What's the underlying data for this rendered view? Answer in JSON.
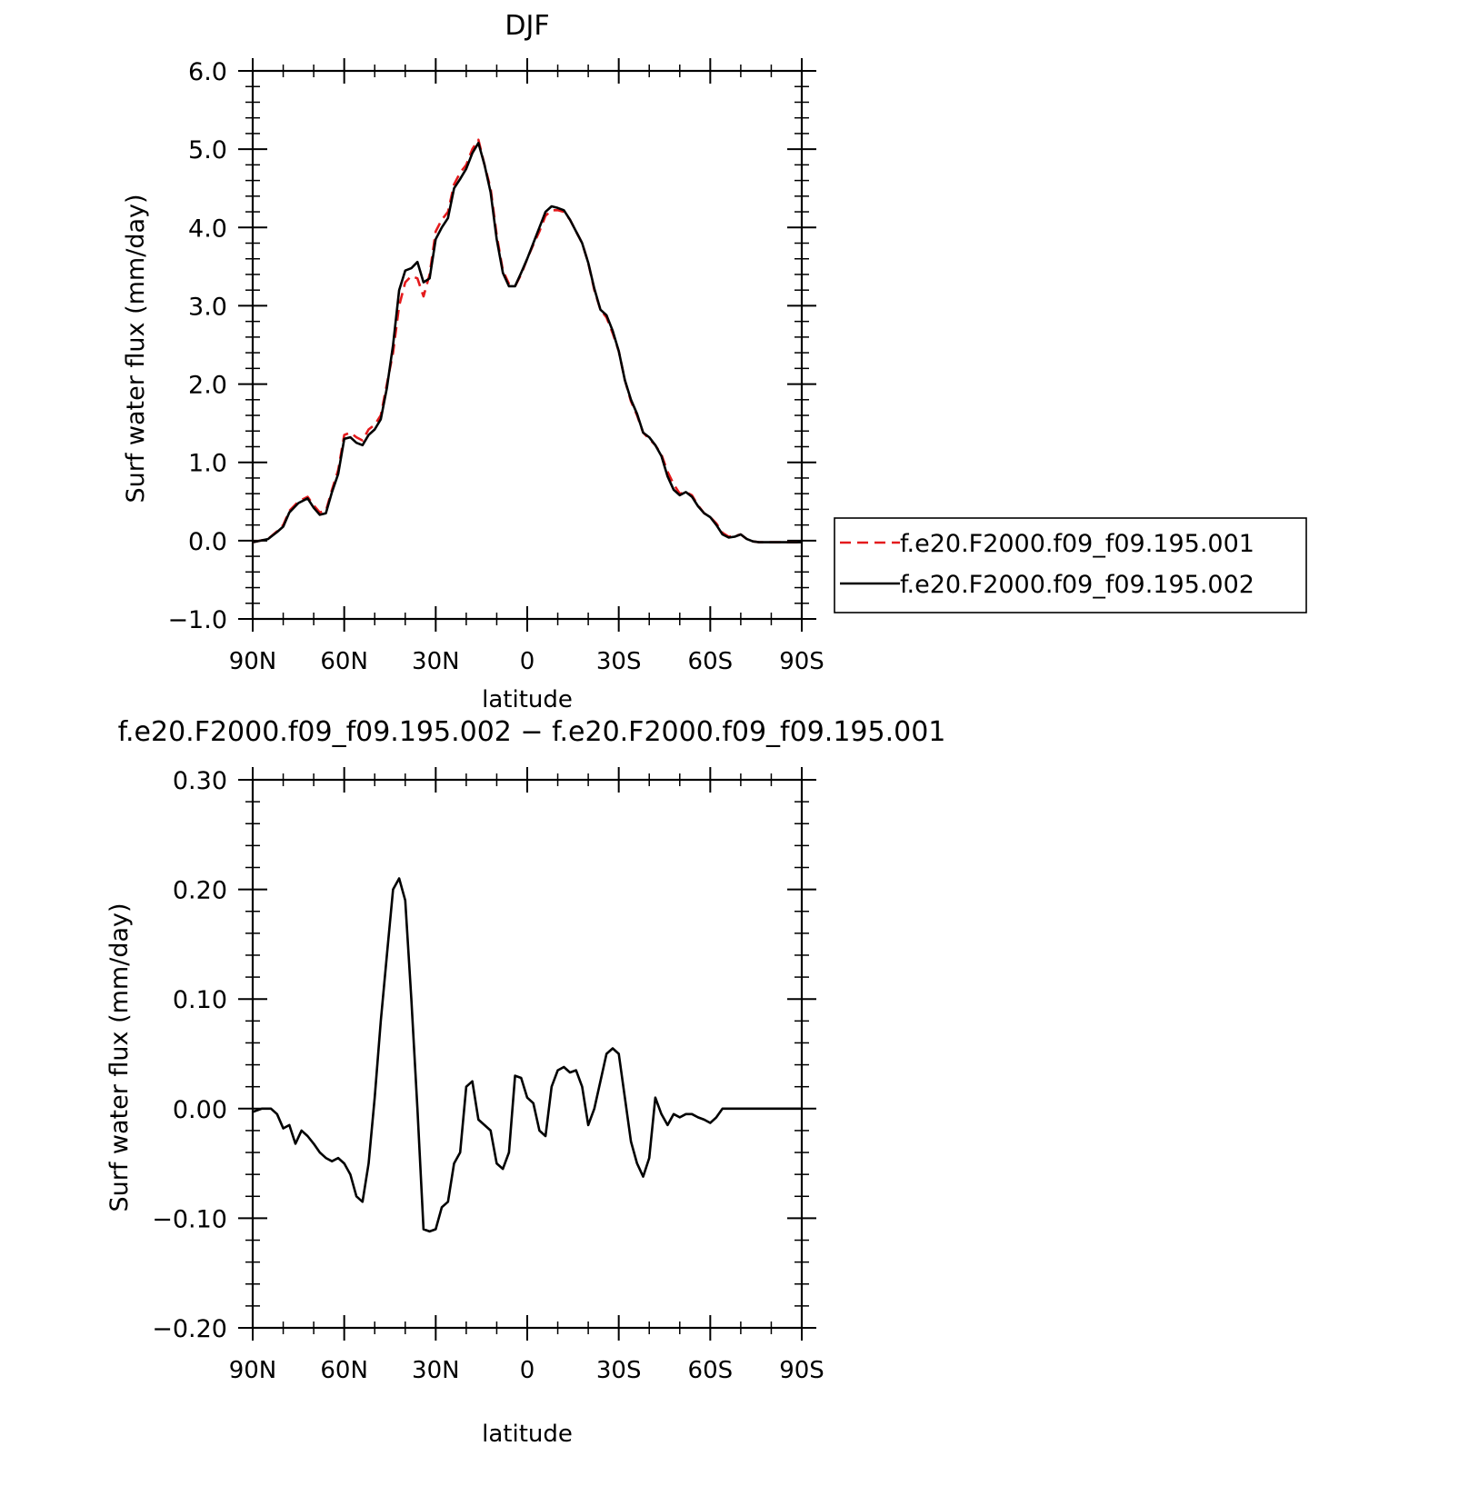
{
  "chart_data": [
    {
      "type": "line",
      "title": "DJF",
      "xlabel": "latitude",
      "ylabel": "Surf water flux (mm/day)",
      "x_unit": "degrees latitude (positive = north, negative = south)",
      "xlim": [
        90,
        -90
      ],
      "ylim": [
        -1.0,
        6.0
      ],
      "xticks": [
        {
          "value": 90,
          "label": "90N"
        },
        {
          "value": 60,
          "label": "60N"
        },
        {
          "value": 30,
          "label": "30N"
        },
        {
          "value": 0,
          "label": "0"
        },
        {
          "value": -30,
          "label": "30S"
        },
        {
          "value": -60,
          "label": "60S"
        },
        {
          "value": -90,
          "label": "90S"
        }
      ],
      "yticks": [
        {
          "value": -1.0,
          "label": "−1.0"
        },
        {
          "value": 0.0,
          "label": "0.0"
        },
        {
          "value": 1.0,
          "label": "1.0"
        },
        {
          "value": 2.0,
          "label": "2.0"
        },
        {
          "value": 3.0,
          "label": "3.0"
        },
        {
          "value": 4.0,
          "label": "4.0"
        },
        {
          "value": 5.0,
          "label": "5.0"
        },
        {
          "value": 6.0,
          "label": "6.0"
        }
      ],
      "legend_position": "right",
      "series": [
        {
          "name": "f.e20.F2000.f09_f09.195.001",
          "color": "#e41a1c",
          "dash": "dashed",
          "x": [
            90,
            85,
            82,
            80,
            78,
            75,
            72,
            70,
            68,
            66,
            64,
            62,
            60,
            58,
            56,
            54,
            52,
            50,
            48,
            46,
            44,
            42,
            40,
            38,
            36,
            34,
            32,
            30,
            28,
            26,
            24,
            22,
            20,
            18,
            16,
            14,
            12,
            10,
            8,
            6,
            4,
            2,
            0,
            -2,
            -4,
            -6,
            -8,
            -10,
            -12,
            -14,
            -16,
            -18,
            -20,
            -22,
            -24,
            -26,
            -28,
            -30,
            -32,
            -34,
            -36,
            -38,
            -40,
            -42,
            -44,
            -46,
            -48,
            -50,
            -52,
            -54,
            -56,
            -58,
            -60,
            -62,
            -64,
            -66,
            -68,
            -70,
            -72,
            -74,
            -76,
            -78,
            -80,
            -82,
            -84,
            -86,
            -88,
            -90
          ],
          "y": [
            -0.02,
            0.02,
            0.12,
            0.2,
            0.38,
            0.5,
            0.56,
            0.45,
            0.36,
            0.38,
            0.65,
            0.9,
            1.35,
            1.38,
            1.32,
            1.28,
            1.42,
            1.48,
            1.6,
            2.0,
            2.4,
            3.0,
            3.3,
            3.38,
            3.35,
            3.12,
            3.4,
            3.95,
            4.1,
            4.2,
            4.55,
            4.7,
            4.8,
            5.0,
            5.12,
            4.8,
            4.5,
            3.9,
            3.45,
            3.28,
            3.25,
            3.4,
            3.6,
            3.78,
            3.95,
            4.15,
            4.22,
            4.22,
            4.2,
            4.1,
            3.95,
            3.8,
            3.55,
            3.2,
            2.95,
            2.85,
            2.65,
            2.42,
            2.05,
            1.78,
            1.6,
            1.38,
            1.3,
            1.22,
            1.1,
            0.88,
            0.72,
            0.6,
            0.62,
            0.58,
            0.45,
            0.35,
            0.3,
            0.22,
            0.1,
            0.05,
            0.06,
            0.08,
            0.02,
            -0.01,
            -0.02,
            -0.02,
            -0.02,
            -0.02,
            -0.02,
            -0.02,
            -0.02,
            -0.02
          ]
        },
        {
          "name": "f.e20.F2000.f09_f09.195.002",
          "color": "#000000",
          "dash": "solid",
          "x": [
            90,
            85,
            82,
            80,
            78,
            75,
            72,
            70,
            68,
            66,
            64,
            62,
            60,
            58,
            56,
            54,
            52,
            50,
            48,
            46,
            44,
            42,
            40,
            38,
            36,
            34,
            32,
            30,
            28,
            26,
            24,
            22,
            20,
            18,
            16,
            14,
            12,
            10,
            8,
            6,
            4,
            2,
            0,
            -2,
            -4,
            -6,
            -8,
            -10,
            -12,
            -14,
            -16,
            -18,
            -20,
            -22,
            -24,
            -26,
            -28,
            -30,
            -32,
            -34,
            -36,
            -38,
            -40,
            -42,
            -44,
            -46,
            -48,
            -50,
            -52,
            -54,
            -56,
            -58,
            -60,
            -62,
            -64,
            -66,
            -68,
            -70,
            -72,
            -74,
            -76,
            -78,
            -80,
            -82,
            -84,
            -86,
            -88,
            -90
          ],
          "y": [
            -0.02,
            0.02,
            0.11,
            0.18,
            0.36,
            0.48,
            0.54,
            0.42,
            0.33,
            0.35,
            0.62,
            0.85,
            1.3,
            1.32,
            1.25,
            1.22,
            1.35,
            1.42,
            1.55,
            1.95,
            2.5,
            3.2,
            3.45,
            3.48,
            3.56,
            3.3,
            3.35,
            3.85,
            4.0,
            4.12,
            4.5,
            4.62,
            4.75,
            4.95,
            5.08,
            4.8,
            4.45,
            3.85,
            3.42,
            3.25,
            3.25,
            3.42,
            3.6,
            3.8,
            4.0,
            4.2,
            4.27,
            4.25,
            4.22,
            4.1,
            3.95,
            3.8,
            3.55,
            3.22,
            2.95,
            2.88,
            2.68,
            2.42,
            2.05,
            1.8,
            1.62,
            1.38,
            1.32,
            1.22,
            1.08,
            0.82,
            0.65,
            0.58,
            0.62,
            0.56,
            0.44,
            0.35,
            0.3,
            0.2,
            0.08,
            0.04,
            0.05,
            0.08,
            0.02,
            -0.01,
            -0.02,
            -0.02,
            -0.02,
            -0.02,
            -0.02,
            -0.02,
            -0.02,
            -0.02
          ]
        }
      ]
    },
    {
      "type": "line",
      "title": "f.e20.F2000.f09_f09.195.002 − f.e20.F2000.f09_f09.195.001",
      "xlabel": "latitude",
      "ylabel": "Surf water flux (mm/day)",
      "x_unit": "degrees latitude (positive = north, negative = south)",
      "xlim": [
        90,
        -90
      ],
      "ylim": [
        -0.2,
        0.3
      ],
      "xticks": [
        {
          "value": 90,
          "label": "90N"
        },
        {
          "value": 60,
          "label": "60N"
        },
        {
          "value": 30,
          "label": "30N"
        },
        {
          "value": 0,
          "label": "0"
        },
        {
          "value": -30,
          "label": "30S"
        },
        {
          "value": -60,
          "label": "60S"
        },
        {
          "value": -90,
          "label": "90S"
        }
      ],
      "yticks": [
        {
          "value": -0.2,
          "label": "−0.20"
        },
        {
          "value": -0.1,
          "label": "−0.10"
        },
        {
          "value": 0.0,
          "label": "0.00"
        },
        {
          "value": 0.1,
          "label": "0.10"
        },
        {
          "value": 0.2,
          "label": "0.20"
        },
        {
          "value": 0.3,
          "label": "0.30"
        }
      ],
      "series": [
        {
          "color": "#000000",
          "dash": "solid",
          "x": [
            90,
            87,
            84,
            82,
            80,
            78,
            76,
            74,
            72,
            70,
            68,
            66,
            64,
            62,
            60,
            58,
            56,
            54,
            52,
            50,
            48,
            46,
            44,
            42,
            40,
            38,
            36,
            34,
            32,
            30,
            28,
            26,
            24,
            22,
            20,
            18,
            16,
            14,
            12,
            10,
            8,
            6,
            4,
            2,
            0,
            -2,
            -4,
            -6,
            -8,
            -10,
            -12,
            -14,
            -16,
            -18,
            -20,
            -22,
            -24,
            -26,
            -28,
            -30,
            -32,
            -34,
            -36,
            -38,
            -40,
            -42,
            -44,
            -46,
            -48,
            -50,
            -52,
            -54,
            -56,
            -58,
            -60,
            -62,
            -64,
            -66,
            -68,
            -70,
            -72,
            -74,
            -76,
            -78,
            -80,
            -82,
            -84,
            -86,
            -88,
            -90
          ],
          "y": [
            -0.003,
            0.0,
            0.0,
            -0.005,
            -0.018,
            -0.015,
            -0.032,
            -0.02,
            -0.025,
            -0.032,
            -0.04,
            -0.045,
            -0.048,
            -0.045,
            -0.05,
            -0.06,
            -0.08,
            -0.085,
            -0.05,
            0.01,
            0.08,
            0.14,
            0.2,
            0.21,
            0.19,
            0.1,
            0.0,
            -0.11,
            -0.112,
            -0.11,
            -0.09,
            -0.085,
            -0.05,
            -0.04,
            0.02,
            0.025,
            -0.01,
            -0.015,
            -0.02,
            -0.05,
            -0.055,
            -0.04,
            0.03,
            0.028,
            0.01,
            0.005,
            -0.02,
            -0.025,
            0.02,
            0.035,
            0.038,
            0.033,
            0.035,
            0.02,
            -0.015,
            0.0,
            0.025,
            0.05,
            0.055,
            0.05,
            0.01,
            -0.03,
            -0.05,
            -0.062,
            -0.045,
            0.01,
            -0.005,
            -0.015,
            -0.005,
            -0.008,
            -0.005,
            -0.005,
            -0.008,
            -0.01,
            -0.013,
            -0.008,
            0.0,
            0.0,
            0.0,
            0.0,
            0.0,
            0.0,
            0.0,
            0.0,
            0.0,
            0.0,
            0.0,
            0.0,
            0.0,
            0.0
          ]
        }
      ]
    }
  ]
}
